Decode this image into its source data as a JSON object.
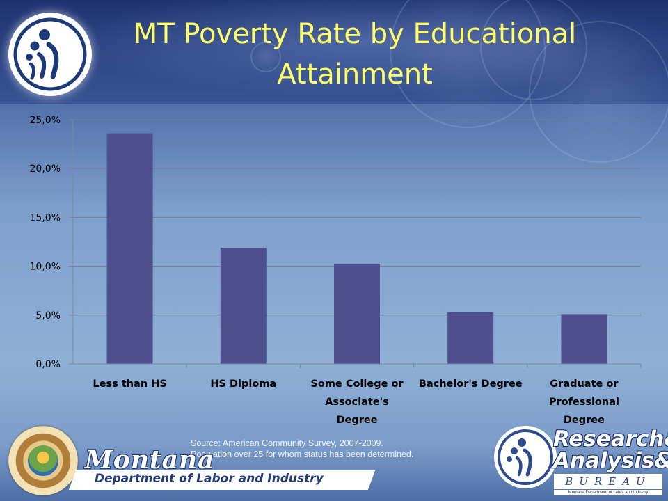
{
  "title": "MT Poverty Rate by Educational\nAttainment",
  "chart_data": {
    "type": "bar",
    "categories": [
      "Less than HS",
      "HS Diploma",
      "Some College or Associate's Degree",
      "Bachelor's Degree",
      "Graduate or Professional Degree"
    ],
    "category_lines": [
      [
        "Less than HS"
      ],
      [
        "HS Diploma"
      ],
      [
        "Some College or",
        "Associate's",
        "Degree"
      ],
      [
        "Bachelor's Degree"
      ],
      [
        "Graduate or",
        "Professional",
        "Degree"
      ]
    ],
    "values": [
      23.6,
      11.9,
      10.2,
      5.3,
      5.1
    ],
    "ylim": [
      0,
      25
    ],
    "yticks": [
      "0,0%",
      "5,0%",
      "10,0%",
      "15,0%",
      "20,0%",
      "25,0%"
    ],
    "grid": true,
    "colors": {
      "bar": "#4f4f8d",
      "grid": "#6e7e9a",
      "axis": "#7c879c"
    }
  },
  "source": {
    "line1": "Source:  American Community Survey, 2007-2009.",
    "line2": "Population over 25 for whom status has been determined."
  },
  "logos": {
    "montana_word": "Montana",
    "department": "Department of Labor and Industry",
    "rab_line1": "Research&",
    "rab_line2": "Analysis&",
    "rab_bureau": "BUREAU",
    "rab_sub": "Montana Department of Labor and Industry",
    "seal_icon": "montana-state-seal",
    "people_icon": "people-figures-logo"
  }
}
